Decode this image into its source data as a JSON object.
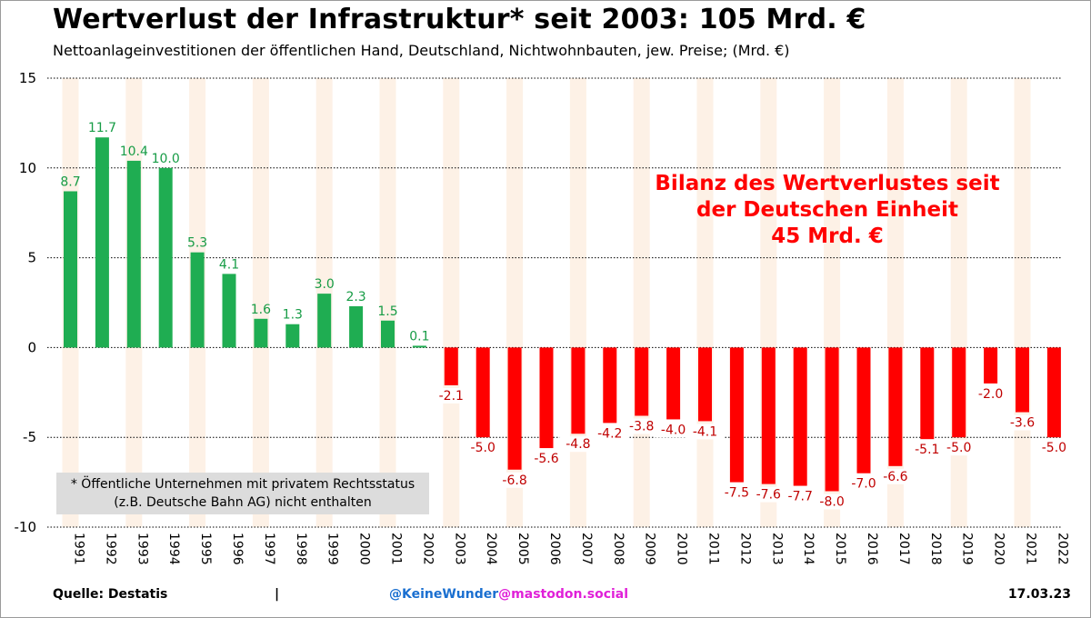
{
  "title": "Wertverlust der Infrastruktur* seit 2003: 105 Mrd. €",
  "subtitle": "Nettoanlageinvestitionen der öffentlichen Hand, Deutschland, Nichtwohnbauten, jew. Preise; (Mrd. €)",
  "annotation": {
    "line1": "Bilanz des Wertverlustes seit",
    "line2": "der Deutschen Einheit",
    "line3": "45 Mrd. €"
  },
  "footnote": {
    "line1": "* Öffentliche Unternehmen mit privatem Rechtsstatus",
    "line2": "(z.B. Deutsche Bahn AG) nicht enthalten"
  },
  "footer": {
    "source": "Quelle: Destatis",
    "separator": "|",
    "handle_user": "@KeineWunder",
    "handle_instance": "@mastodon.social",
    "date": "17.03.23"
  },
  "colors": {
    "positive": "#1fad52",
    "positive_label": "#179c46",
    "negative": "#ff0000",
    "negative_label": "#c00000",
    "stripe": "#fdf1e6",
    "grid": "#000000"
  },
  "chart_data": {
    "type": "bar",
    "title": "Wertverlust der Infrastruktur* seit 2003: 105 Mrd. €",
    "subtitle": "Nettoanlageinvestitionen der öffentlichen Hand, Deutschland, Nichtwohnbauten, jew. Preise; (Mrd. €)",
    "xlabel": "",
    "ylabel": "",
    "ylim": [
      -10,
      15
    ],
    "yticks": [
      15,
      10,
      5,
      0,
      -5,
      -10
    ],
    "ytick_labels": [
      "15",
      "10",
      "5",
      "0",
      "-5",
      "-10"
    ],
    "grid": "horizontal dotted",
    "categories": [
      "1991",
      "1992",
      "1993",
      "1994",
      "1995",
      "1996",
      "1997",
      "1998",
      "1999",
      "2000",
      "2001",
      "2002",
      "2003",
      "2004",
      "2005",
      "2006",
      "2007",
      "2008",
      "2009",
      "2010",
      "2011",
      "2012",
      "2013",
      "2014",
      "2015",
      "2016",
      "2017",
      "2018",
      "2019",
      "2020",
      "2021",
      "2022"
    ],
    "values": [
      8.7,
      11.7,
      10.4,
      10.0,
      5.3,
      4.1,
      1.6,
      1.3,
      3.0,
      2.3,
      1.5,
      0.1,
      -2.1,
      -5.0,
      -6.8,
      -5.6,
      -4.8,
      -4.2,
      -3.8,
      -4.0,
      -4.1,
      -7.5,
      -7.6,
      -7.7,
      -8.0,
      -7.0,
      -6.6,
      -5.1,
      -5.0,
      -2.0,
      -3.6,
      -5.0
    ],
    "value_labels": [
      "8.7",
      "11.7",
      "10.4",
      "10.0",
      "5.3",
      "4.1",
      "1.6",
      "1.3",
      "3.0",
      "2.3",
      "1.5",
      "0.1",
      "-2.1",
      "-5.0",
      "-6.8",
      "-5.6",
      "-4.8",
      "-4.2",
      "-3.8",
      "-4.0",
      "-4.1",
      "-7.5",
      "-7.6",
      "-7.7",
      "-8.0",
      "-7.0",
      "-6.6",
      "-5.1",
      "-5.0",
      "-2.0",
      "-3.6",
      "-5.0"
    ]
  }
}
